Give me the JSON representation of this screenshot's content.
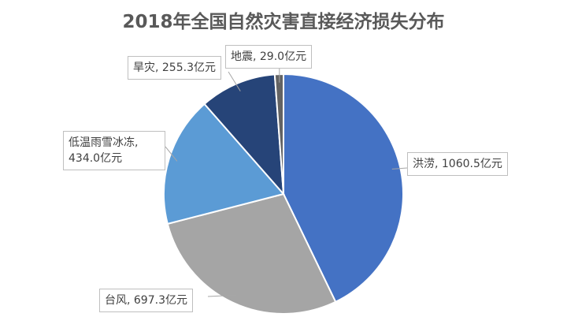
{
  "chart_data": {
    "type": "pie",
    "title": "2018年全国自然灾害直接经济损失分布",
    "values": [
      1060.5,
      697.3,
      434.0,
      255.3,
      29.0
    ],
    "value_labels": [
      "洪涝, 1060.5亿元",
      "台风, 697.3亿元",
      "低温雨雪冰冻, 434.0亿元",
      "旱灾, 255.3亿元",
      "地震, 29.0亿元"
    ],
    "colors": [
      "#4472c4",
      "#a5a5a5",
      "#5b9bd5",
      "#264478",
      "#636363"
    ]
  }
}
